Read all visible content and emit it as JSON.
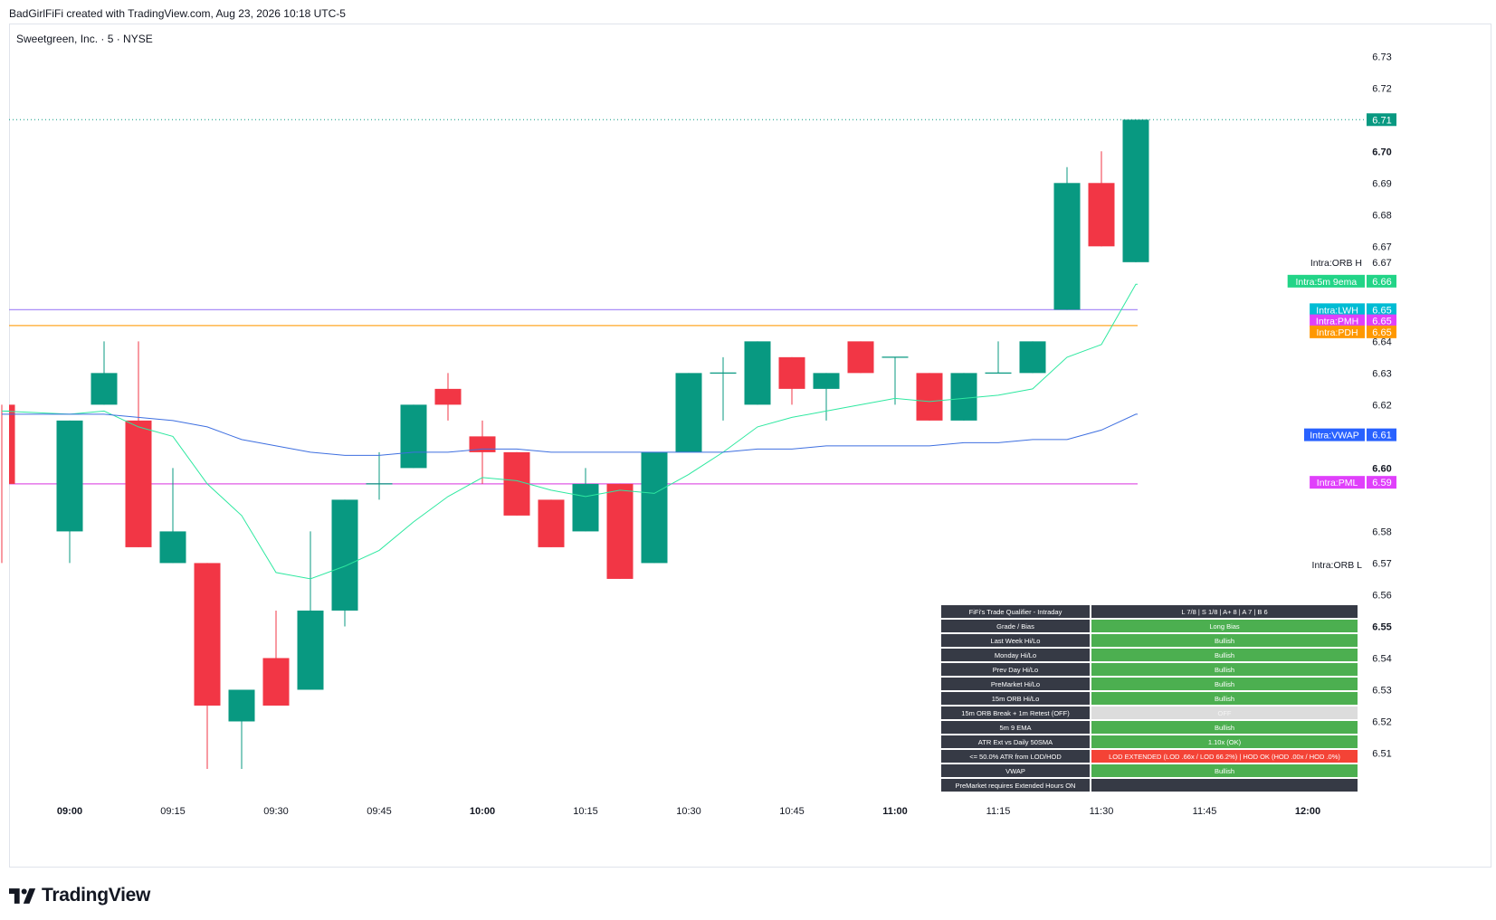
{
  "header": {
    "created_note": "BadGirlFiFi created with TradingView.com, Aug 23, 2026 10:18 UTC-5"
  },
  "symbol": {
    "title": "Sweetgreen, Inc. · 5 · NYSE"
  },
  "brand": {
    "name": "TradingView"
  },
  "chart_data": {
    "type": "candlestick",
    "time_labels": [
      {
        "time": "09:00",
        "bold": true
      },
      {
        "time": "09:15",
        "bold": false
      },
      {
        "time": "09:30",
        "bold": false
      },
      {
        "time": "09:45",
        "bold": false
      },
      {
        "time": "10:00",
        "bold": true
      },
      {
        "time": "10:15",
        "bold": false
      },
      {
        "time": "10:30",
        "bold": false
      },
      {
        "time": "10:45",
        "bold": false
      },
      {
        "time": "11:00",
        "bold": true
      },
      {
        "time": "11:15",
        "bold": false
      },
      {
        "time": "11:30",
        "bold": false
      },
      {
        "time": "11:45",
        "bold": false
      },
      {
        "time": "12:00",
        "bold": true
      }
    ],
    "price_ticks": [
      {
        "v": "6.73",
        "bold": false
      },
      {
        "v": "6.72",
        "bold": false
      },
      {
        "v": "6.70",
        "bold": true
      },
      {
        "v": "6.69",
        "bold": false
      },
      {
        "v": "6.68",
        "bold": false
      },
      {
        "v": "6.67",
        "bold": false
      },
      {
        "v": "6.64",
        "bold": false
      },
      {
        "v": "6.63",
        "bold": false
      },
      {
        "v": "6.62",
        "bold": false
      },
      {
        "v": "6.60",
        "bold": true
      },
      {
        "v": "6.58",
        "bold": false
      },
      {
        "v": "6.57",
        "bold": false
      },
      {
        "v": "6.56",
        "bold": false
      },
      {
        "v": "6.55",
        "bold": true
      },
      {
        "v": "6.54",
        "bold": false
      },
      {
        "v": "6.53",
        "bold": false
      },
      {
        "v": "6.52",
        "bold": false
      },
      {
        "v": "6.51",
        "bold": false
      }
    ],
    "y_range": [
      6.503,
      6.7355
    ],
    "candles": [
      {
        "time": "08:55",
        "open": 6.64,
        "high": 6.64,
        "low": 6.62,
        "close": 6.62
      },
      {
        "time": "08:55",
        "open": 6.62,
        "high": 6.62,
        "low": 6.57,
        "close": 6.595
      },
      {
        "time": "09:00",
        "open": 6.58,
        "high": 6.615,
        "low": 6.57,
        "close": 6.615
      },
      {
        "time": "09:05",
        "open": 6.62,
        "high": 6.64,
        "low": 6.62,
        "close": 6.63
      },
      {
        "time": "09:10",
        "open": 6.615,
        "high": 6.64,
        "low": 6.575,
        "close": 6.575
      },
      {
        "time": "09:15",
        "open": 6.57,
        "high": 6.6,
        "low": 6.57,
        "close": 6.58
      },
      {
        "time": "09:20",
        "open": 6.57,
        "high": 6.57,
        "low": 6.505,
        "close": 6.525
      },
      {
        "time": "09:25",
        "open": 6.52,
        "high": 6.53,
        "low": 6.505,
        "close": 6.53
      },
      {
        "time": "09:30",
        "open": 6.54,
        "high": 6.555,
        "low": 6.525,
        "close": 6.525
      },
      {
        "time": "09:35",
        "open": 6.53,
        "high": 6.58,
        "low": 6.53,
        "close": 6.555
      },
      {
        "time": "09:40",
        "open": 6.555,
        "high": 6.59,
        "low": 6.55,
        "close": 6.59
      },
      {
        "time": "09:45",
        "open": 6.595,
        "high": 6.605,
        "low": 6.59,
        "close": 6.595
      },
      {
        "time": "09:50",
        "open": 6.6,
        "high": 6.62,
        "low": 6.6,
        "close": 6.62
      },
      {
        "time": "09:55",
        "open": 6.625,
        "high": 6.63,
        "low": 6.615,
        "close": 6.62
      },
      {
        "time": "10:00",
        "open": 6.61,
        "high": 6.615,
        "low": 6.595,
        "close": 6.605
      },
      {
        "time": "10:05",
        "open": 6.605,
        "high": 6.605,
        "low": 6.585,
        "close": 6.585
      },
      {
        "time": "10:10",
        "open": 6.59,
        "high": 6.59,
        "low": 6.575,
        "close": 6.575
      },
      {
        "time": "10:15",
        "open": 6.58,
        "high": 6.6,
        "low": 6.58,
        "close": 6.595
      },
      {
        "time": "10:20",
        "open": 6.595,
        "high": 6.595,
        "low": 6.565,
        "close": 6.565
      },
      {
        "time": "10:25",
        "open": 6.57,
        "high": 6.605,
        "low": 6.57,
        "close": 6.605
      },
      {
        "time": "10:30",
        "open": 6.605,
        "high": 6.63,
        "low": 6.605,
        "close": 6.63
      },
      {
        "time": "10:35",
        "open": 6.63,
        "high": 6.635,
        "low": 6.615,
        "close": 6.63
      },
      {
        "time": "10:40",
        "open": 6.62,
        "high": 6.64,
        "low": 6.62,
        "close": 6.64
      },
      {
        "time": "10:45",
        "open": 6.635,
        "high": 6.635,
        "low": 6.62,
        "close": 6.625
      },
      {
        "time": "10:50",
        "open": 6.625,
        "high": 6.63,
        "low": 6.615,
        "close": 6.63
      },
      {
        "time": "10:55",
        "open": 6.64,
        "high": 6.64,
        "low": 6.63,
        "close": 6.63
      },
      {
        "time": "11:00",
        "open": 6.635,
        "high": 6.635,
        "low": 6.62,
        "close": 6.635
      },
      {
        "time": "11:05",
        "open": 6.63,
        "high": 6.63,
        "low": 6.615,
        "close": 6.615
      },
      {
        "time": "11:10",
        "open": 6.615,
        "high": 6.63,
        "low": 6.615,
        "close": 6.63
      },
      {
        "time": "11:15",
        "open": 6.63,
        "high": 6.64,
        "low": 6.63,
        "close": 6.63
      },
      {
        "time": "11:20",
        "open": 6.63,
        "high": 6.64,
        "low": 6.63,
        "close": 6.64
      },
      {
        "time": "11:25",
        "open": 6.65,
        "high": 6.695,
        "low": 6.65,
        "close": 6.69
      },
      {
        "time": "11:30",
        "open": 6.69,
        "high": 6.7,
        "low": 6.67,
        "close": 6.67
      },
      {
        "time": "11:35",
        "open": 6.665,
        "high": 6.71,
        "low": 6.665,
        "close": 6.71
      }
    ],
    "series": [
      {
        "name": "Intra:5m 9ema",
        "color": "#2ee8a0",
        "values": [
          6.618,
          6.618,
          6.617,
          6.618,
          6.613,
          6.61,
          6.595,
          6.585,
          6.567,
          6.565,
          6.569,
          6.574,
          6.583,
          6.591,
          6.597,
          6.596,
          6.593,
          6.591,
          6.593,
          6.592,
          6.598,
          6.605,
          6.613,
          6.616,
          6.618,
          6.62,
          6.622,
          6.621,
          6.622,
          6.623,
          6.625,
          6.635,
          6.639,
          6.658
        ]
      },
      {
        "name": "Intra:VWAP",
        "color": "#3e6fe0",
        "values": [
          6.617,
          6.617,
          6.617,
          6.617,
          6.616,
          6.615,
          6.613,
          6.609,
          6.607,
          6.605,
          6.604,
          6.604,
          6.605,
          6.605,
          6.606,
          6.606,
          6.605,
          6.605,
          6.605,
          6.605,
          6.605,
          6.605,
          6.606,
          6.606,
          6.607,
          6.607,
          6.607,
          6.607,
          6.608,
          6.608,
          6.609,
          6.609,
          6.612,
          6.617
        ]
      }
    ],
    "level_lines": [
      {
        "name": "Intra:LWH",
        "value": 6.65,
        "color": "#a98ef7",
        "style": "solid"
      },
      {
        "name": "Intra:PDH",
        "value": 6.645,
        "color": "#ffa726",
        "style": "solid"
      },
      {
        "name": "Intra:PML",
        "value": 6.595,
        "color": "#e05ae6",
        "style": "solid"
      },
      {
        "name": "last_price",
        "value": 6.71,
        "color": "#089981",
        "style": "dotted"
      }
    ],
    "price_badges": [
      {
        "label": "",
        "value": "6.71",
        "y": 6.71,
        "label_color": "",
        "value_color": "#089981"
      },
      {
        "label": "Intra:ORB H",
        "value": "6.67",
        "y": 6.665,
        "label_color": "",
        "value_color": ""
      },
      {
        "label": "Intra:5m 9ema",
        "value": "6.66",
        "y": 6.659,
        "label_color": "#22d487",
        "value_color": "#22d487"
      },
      {
        "label": "Intra:LWH",
        "value": "6.65",
        "y": 6.65,
        "label_color": "#00bcd4",
        "value_color": "#00bcd4"
      },
      {
        "label": "Intra:PMH",
        "value": "6.65",
        "y": 6.6465,
        "label_color": "#e040fb",
        "value_color": "#e040fb"
      },
      {
        "label": "Intra:PDH",
        "value": "6.65",
        "y": 6.643,
        "label_color": "#ff9800",
        "value_color": "#ff9800"
      },
      {
        "label": "Intra:VWAP",
        "value": "6.61",
        "y": 6.6105,
        "label_color": "#2962ff",
        "value_color": "#2962ff"
      },
      {
        "label": "Intra:PML",
        "value": "6.59",
        "y": 6.5955,
        "label_color": "#e040fb",
        "value_color": "#e040fb"
      },
      {
        "label": "Intra:ORB L",
        "value": "",
        "y": 6.5695,
        "label_color": "",
        "value_color": ""
      }
    ]
  },
  "qualifier_table": {
    "rows": [
      {
        "label": "FiFi's Trade Qualifier - Intraday",
        "value": "L 7/8 | S 1/8 | A+ 8 | A 7 | B 6",
        "bg": "#363a45",
        "fg": "#ffffff"
      },
      {
        "label": "Grade / Bias",
        "value": "Long Bias",
        "bg": "#4caf50",
        "fg": "#ffffff"
      },
      {
        "label": "Last Week Hi/Lo",
        "value": "Bullish",
        "bg": "#4caf50",
        "fg": "#ffffff"
      },
      {
        "label": "Monday Hi/Lo",
        "value": "Bullish",
        "bg": "#4caf50",
        "fg": "#ffffff"
      },
      {
        "label": "Prev Day Hi/Lo",
        "value": "Bullish",
        "bg": "#4caf50",
        "fg": "#ffffff"
      },
      {
        "label": "PreMarket Hi/Lo",
        "value": "Bullish",
        "bg": "#4caf50",
        "fg": "#ffffff"
      },
      {
        "label": "15m ORB Hi/Lo",
        "value": "Bullish",
        "bg": "#4caf50",
        "fg": "#ffffff"
      },
      {
        "label": "15m ORB Break + 1m Retest (OFF)",
        "value": "OFF",
        "bg": "#dcdcdc",
        "fg": "#f4f4f4"
      },
      {
        "label": "5m 9 EMA",
        "value": "Bullish",
        "bg": "#4caf50",
        "fg": "#ffffff"
      },
      {
        "label": "ATR Ext vs Daily 50SMA",
        "value": "1.10x (OK)",
        "bg": "#4caf50",
        "fg": "#ffffff"
      },
      {
        "label": "<= 50.0% ATR from LOD/HOD",
        "value": "LOD EXTENDED (LOD .66x / LOD 66.2%) | HOD OK (HOD .00x / HOD .0%)",
        "bg": "#f44336",
        "fg": "#ffffff"
      },
      {
        "label": "VWAP",
        "value": "Bullish",
        "bg": "#4caf50",
        "fg": "#ffffff"
      },
      {
        "label": "PreMarket requires Extended Hours ON",
        "value": "",
        "bg": "#363a45",
        "fg": "#ffffff"
      }
    ]
  }
}
